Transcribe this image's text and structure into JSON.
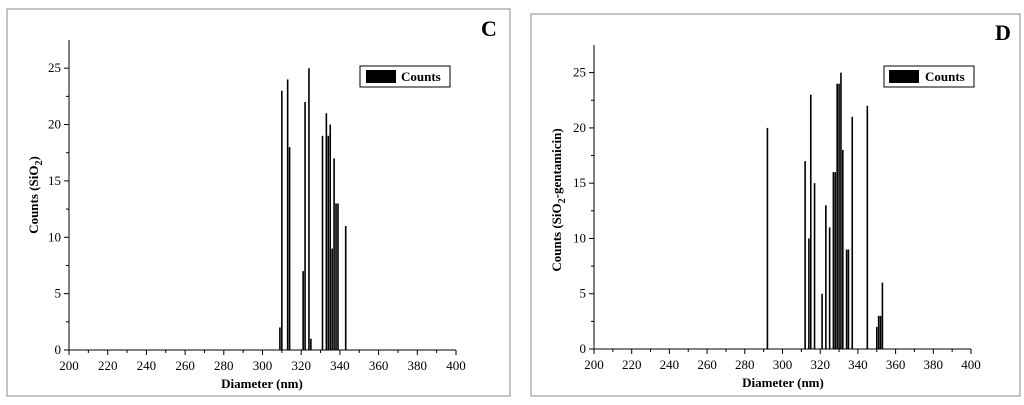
{
  "chart_data": [
    {
      "type": "bar",
      "panel_label": "C",
      "xlabel": "Diameter (nm)",
      "ylabel_main": "Counts (SiO",
      "ylabel_sub": "2",
      "ylabel_tail": ")",
      "legend": "Counts",
      "legend_position": "top-right",
      "xlim": [
        200,
        400
      ],
      "ylim": [
        0,
        27.5
      ],
      "xticks": [
        "200",
        "220",
        "240",
        "260",
        "280",
        "300",
        "320",
        "340",
        "360",
        "380",
        "400"
      ],
      "yticks": [
        "0",
        "5",
        "10",
        "15",
        "20",
        "25"
      ],
      "series": [
        {
          "name": "Counts",
          "x": [
            309,
            310,
            313,
            314,
            321,
            322,
            324,
            325,
            331,
            333,
            334,
            335,
            336,
            337,
            338,
            339,
            343
          ],
          "values": [
            2,
            23,
            24,
            18,
            7,
            22,
            25,
            1,
            19,
            21,
            19,
            20,
            9,
            17,
            13,
            13,
            11
          ]
        }
      ]
    },
    {
      "type": "bar",
      "panel_label": "D",
      "xlabel": "Diameter (nm)",
      "ylabel_main": "Counts (SiO",
      "ylabel_sub": "2",
      "ylabel_tail": "-gentamicin)",
      "legend": "Counts",
      "legend_position": "top-right",
      "xlim": [
        200,
        400
      ],
      "ylim": [
        0,
        27.5
      ],
      "xticks": [
        "200",
        "220",
        "240",
        "260",
        "280",
        "300",
        "320",
        "340",
        "360",
        "380",
        "400"
      ],
      "yticks": [
        "0",
        "5",
        "10",
        "15",
        "20",
        "25"
      ],
      "series": [
        {
          "name": "Counts",
          "x": [
            292,
            312,
            314,
            315,
            317,
            321,
            323,
            325,
            327,
            328,
            329,
            330,
            331,
            332,
            334,
            335,
            337,
            339,
            341,
            345,
            350,
            351,
            352,
            353
          ],
          "values": [
            20,
            17,
            10,
            23,
            15,
            5,
            13,
            11,
            16,
            16,
            24,
            24,
            25,
            18,
            9,
            9,
            21,
            0,
            0,
            22,
            2,
            3,
            3,
            6
          ]
        }
      ]
    }
  ]
}
